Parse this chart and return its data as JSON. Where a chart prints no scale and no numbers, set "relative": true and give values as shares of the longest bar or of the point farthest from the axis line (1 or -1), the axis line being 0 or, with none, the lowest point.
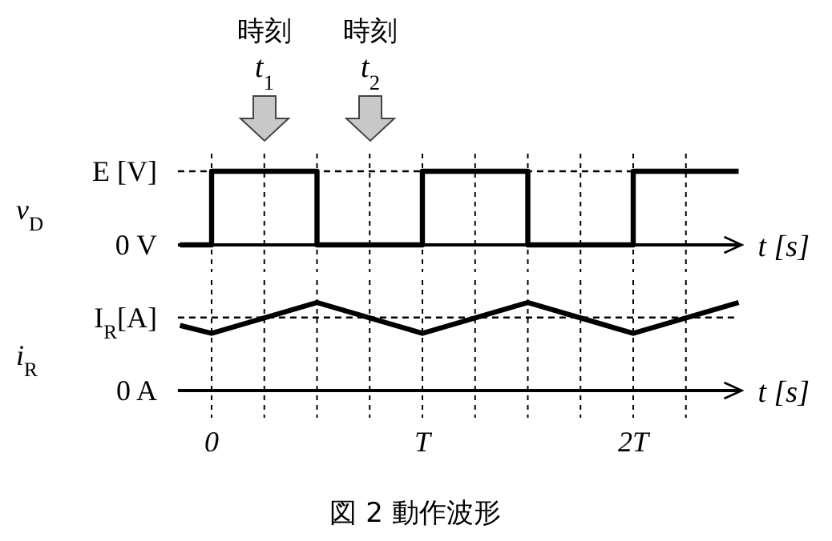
{
  "chart_data": [
    {
      "type": "step",
      "ylabel": "v$_{D}$",
      "xlabel": "t [s]",
      "xlim": [
        -0.16,
        2.5
      ],
      "relative": true,
      "xticks": [
        {
          "value": 0,
          "label": null
        },
        {
          "value": 0.25,
          "label": null
        },
        {
          "value": 0.5,
          "label": null
        },
        {
          "value": 0.75,
          "label": null
        },
        {
          "value": 1,
          "label": null
        },
        {
          "value": 1.25,
          "label": null
        },
        {
          "value": 1.5,
          "label": null
        },
        {
          "value": 1.75,
          "label": null
        },
        {
          "value": 2,
          "label": null
        },
        {
          "value": 2.25,
          "label": null
        }
      ],
      "grid": "x",
      "tick_labels": false,
      "line_style": "solid",
      "ref_lines": [
        {
          "axis": "y",
          "value": 1,
          "label": "E [V]",
          "line_style": "dashed"
        }
      ],
      "annotations": [
        "時刻\nt$_{1}$",
        "時刻\nt$_{2}$",
        "0 V"
      ],
      "series": [
        {
          "color": "#000000",
          "x": [
            -0.15,
            0,
            0.5,
            1,
            1.5,
            2,
            2.5
          ],
          "values": [
            0,
            1,
            0,
            1,
            0,
            1,
            1
          ]
        }
      ]
    },
    {
      "type": "line",
      "ylabel": "i$_{R}$",
      "xlabel": "t [s]",
      "xlim": [
        -0.16,
        2.5
      ],
      "relative": true,
      "xticks": [
        {
          "value": 0,
          "label": "0"
        },
        {
          "value": 0.25,
          "label": null
        },
        {
          "value": 0.5,
          "label": null
        },
        {
          "value": 0.75,
          "label": null
        },
        {
          "value": 1,
          "label": "T"
        },
        {
          "value": 1.25,
          "label": null
        },
        {
          "value": 1.5,
          "label": null
        },
        {
          "value": 1.75,
          "label": null
        },
        {
          "value": 2,
          "label": "2T"
        },
        {
          "value": 2.25,
          "label": null
        }
      ],
      "grid": "x",
      "tick_labels": "x",
      "line_style": "solid",
      "ref_lines": [
        {
          "axis": "y",
          "value": 0.83,
          "label": "I$_{R}$[A]",
          "line_style": "dashed"
        }
      ],
      "annotations": [
        "0 A",
        "図 2 動作波形"
      ],
      "series": [
        {
          "color": "#000000",
          "x": [
            -0.15,
            0,
            0.5,
            1,
            1.5,
            2,
            2.5
          ],
          "values": [
            0.74,
            0.65,
            1,
            0.65,
            1,
            0.65,
            1
          ]
        }
      ]
    }
  ]
}
